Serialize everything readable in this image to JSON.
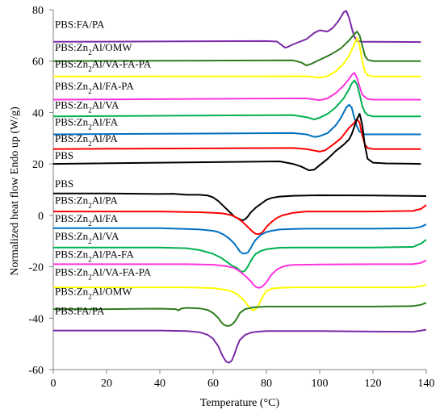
{
  "chart_data": {
    "type": "line",
    "xlabel": "Temperature (°C)",
    "ylabel": "Normalized heat flow Endo up (W/g)",
    "xlim": [
      0,
      140
    ],
    "ylim": [
      -60,
      80
    ],
    "xticks": [
      0,
      20,
      40,
      60,
      80,
      100,
      120,
      140
    ],
    "yticks": [
      80,
      60,
      40,
      20,
      0,
      -20,
      -40,
      -60
    ],
    "grid": false,
    "legend": "inline labels above each curve",
    "labels": [
      {
        "parts": [
          "PBS:FA/PA"
        ],
        "x": 0,
        "y": 73
      },
      {
        "parts": [
          "PBS:Zn",
          "2",
          "Al/OMW"
        ],
        "x": 0,
        "y": 64
      },
      {
        "parts": [
          "PBS:Zn",
          "2",
          "Al/VA-FA-PA"
        ],
        "x": 0,
        "y": 57.5
      },
      {
        "parts": [
          "PBS:Zn",
          "2",
          "Al/FA-PA"
        ],
        "x": 0,
        "y": 49
      },
      {
        "parts": [
          "PBS:Zn",
          "2",
          "Al/VA"
        ],
        "x": 0,
        "y": 41.5
      },
      {
        "parts": [
          "PBS:Zn",
          "2",
          "Al/FA"
        ],
        "x": 0,
        "y": 35
      },
      {
        "parts": [
          "PBS:Zn",
          "2",
          "Al/PA"
        ],
        "x": 0,
        "y": 28.5
      },
      {
        "parts": [
          "PBS"
        ],
        "x": 0,
        "y": 22
      },
      {
        "parts": [
          "PBS"
        ],
        "x": 0,
        "y": 11
      },
      {
        "parts": [
          "PBS:Zn",
          "2",
          "Al/PA"
        ],
        "x": 0,
        "y": 4.5
      },
      {
        "parts": [
          "PBS:Zn",
          "2",
          "Al/FA"
        ],
        "x": 0,
        "y": -2.5
      },
      {
        "parts": [
          "PBS:Zn",
          "2",
          "Al/VA"
        ],
        "x": 0,
        "y": -9.5
      },
      {
        "parts": [
          "PBS:Zn",
          "2",
          "Al/PA-FA"
        ],
        "x": 0,
        "y": -16.5
      },
      {
        "parts": [
          "PBS:Zn",
          "2",
          "Al/VA-FA-PA"
        ],
        "x": 0,
        "y": -23.5
      },
      {
        "parts": [
          "PBS:Zn",
          "2",
          "Al/OMW"
        ],
        "x": 0,
        "y": -31
      },
      {
        "parts": [
          "PBS:FA/PA"
        ],
        "x": 0,
        "y": -38.5
      }
    ],
    "series": [
      {
        "color": "#7b2aa8",
        "x": [
          0,
          80,
          84,
          86,
          87,
          88,
          90,
          95,
          98,
          100,
          103,
          105,
          107,
          109,
          110,
          111,
          112,
          113,
          114,
          116,
          118,
          120,
          138
        ],
        "y": [
          67.5,
          67.8,
          67.6,
          66,
          65.2,
          65.5,
          66.5,
          68.5,
          71,
          72,
          71.5,
          73,
          75.5,
          79,
          79.5,
          77,
          73,
          69.5,
          67.8,
          67.5,
          67.5,
          67.5,
          67.4
        ]
      },
      {
        "color": "#2e7d1e",
        "x": [
          0,
          90,
          93,
          95,
          97,
          100,
          104,
          108,
          111,
          113,
          114,
          115,
          116,
          117,
          118,
          120,
          125,
          138
        ],
        "y": [
          60,
          60.3,
          59.5,
          58.3,
          59,
          60.5,
          62.5,
          65,
          68,
          70.5,
          71.5,
          70,
          66,
          62,
          60.5,
          60,
          60,
          60
        ]
      },
      {
        "color": "#ffff00",
        "x": [
          0,
          95,
          100,
          103,
          106,
          109,
          111,
          113,
          114,
          115,
          116,
          117,
          118,
          120,
          125,
          138
        ],
        "y": [
          54,
          54.1,
          53.5,
          54.2,
          56,
          59,
          62,
          66.5,
          69,
          66,
          60,
          56,
          54.5,
          54,
          54,
          54
        ]
      },
      {
        "color": "#ff33dd",
        "x": [
          0,
          95,
          100,
          103,
          106,
          109,
          111,
          112,
          113,
          114,
          115,
          116,
          117,
          118,
          120,
          125,
          138
        ],
        "y": [
          45,
          45.5,
          44.8,
          45.5,
          47.5,
          50.5,
          53,
          54.5,
          55.5,
          53.5,
          50,
          47,
          46,
          45.3,
          45,
          45,
          45
        ]
      },
      {
        "color": "#00b050",
        "x": [
          0,
          90,
          95,
          98,
          100,
          103,
          106,
          109,
          111,
          112,
          113,
          114,
          115,
          116,
          117,
          118,
          120,
          125,
          138
        ],
        "y": [
          38.5,
          39,
          38.2,
          37.3,
          38,
          39.5,
          42,
          45.5,
          49,
          51.2,
          52.5,
          51,
          47,
          42.5,
          40,
          39,
          38.5,
          38.5,
          38.5
        ]
      },
      {
        "color": "#0070c0",
        "x": [
          0,
          90,
          95,
          98,
          100,
          103,
          106,
          108,
          109,
          110,
          111,
          112,
          113,
          114,
          115,
          116,
          117,
          120,
          125,
          138
        ],
        "y": [
          31.5,
          32,
          31.5,
          30.5,
          30.8,
          32,
          35,
          38,
          40,
          42,
          43,
          42,
          38,
          34.5,
          32.5,
          32,
          31.5,
          31.5,
          31.5,
          31.5
        ]
      },
      {
        "color": "#ff0000",
        "x": [
          0,
          90,
          95,
          100,
          102,
          105,
          108,
          111,
          113,
          114,
          115,
          116,
          117,
          118,
          120,
          125,
          138
        ],
        "y": [
          25.8,
          26.2,
          25.8,
          24.8,
          25.3,
          27.5,
          30,
          34,
          36,
          37.5,
          36,
          31,
          27.5,
          26.2,
          25.8,
          25.8,
          25.8
        ]
      },
      {
        "color": "#000000",
        "x": [
          0,
          85,
          90,
          93,
          95,
          96,
          98,
          100,
          103,
          106,
          109,
          111,
          112,
          113,
          114,
          115,
          116,
          117,
          118,
          120,
          125,
          138
        ],
        "y": [
          20,
          21,
          20,
          19,
          18,
          17.5,
          17.8,
          19.5,
          22,
          25,
          27.5,
          29.5,
          31.5,
          34.5,
          37.5,
          39.5,
          35,
          27,
          22,
          20.5,
          20.2,
          20
        ]
      },
      {
        "color": "#000000",
        "x": [
          0,
          20,
          40,
          45,
          50,
          55,
          58,
          60,
          62,
          64,
          66,
          68,
          70,
          71,
          72,
          73,
          74,
          76,
          78,
          80,
          82,
          85,
          90,
          100,
          120,
          140
        ],
        "y": [
          8.5,
          8.5,
          8.3,
          8.4,
          8,
          8,
          7.7,
          7,
          5.5,
          3.5,
          1.5,
          -0.5,
          -1.5,
          -2,
          -1.5,
          -0.5,
          1,
          3,
          4.5,
          6,
          6.8,
          7.3,
          7.6,
          7.8,
          7.7,
          7.5
        ]
      },
      {
        "color": "#ff0000",
        "x": [
          0,
          40,
          50,
          55,
          60,
          63,
          65,
          67,
          69,
          71,
          73,
          75,
          76,
          77,
          78,
          79,
          80,
          82,
          84,
          86,
          88,
          90,
          95,
          100,
          120,
          135,
          138,
          140
        ],
        "y": [
          1.5,
          1.5,
          1.3,
          1.2,
          1,
          0.8,
          0.5,
          0,
          -1,
          -2.5,
          -4.5,
          -6.5,
          -7.2,
          -7.3,
          -7,
          -6,
          -4.5,
          -2.5,
          -1,
          0,
          0.5,
          1,
          1.5,
          1.5,
          1.5,
          1.7,
          2.5,
          4
        ]
      },
      {
        "color": "#0070c0",
        "x": [
          0,
          40,
          50,
          55,
          60,
          62,
          64,
          66,
          68,
          69,
          70,
          71,
          72,
          73,
          74,
          75,
          76,
          78,
          80,
          82,
          85,
          90,
          95,
          100,
          120,
          135,
          138,
          140
        ],
        "y": [
          -5,
          -5,
          -5.3,
          -5.5,
          -6,
          -6.5,
          -7.5,
          -9,
          -11,
          -12.5,
          -14,
          -14.8,
          -14.9,
          -14.5,
          -13,
          -11,
          -9.5,
          -7.5,
          -6.5,
          -6,
          -5.5,
          -5.3,
          -5.2,
          -5.2,
          -5.2,
          -5,
          -4.5,
          -3.5
        ]
      },
      {
        "color": "#00b050",
        "x": [
          0,
          40,
          50,
          55,
          60,
          63,
          65,
          67,
          69,
          70,
          71,
          72,
          73,
          74,
          75,
          76,
          78,
          80,
          82,
          85,
          90,
          100,
          120,
          135,
          138,
          140
        ],
        "y": [
          -12.5,
          -12.5,
          -12.8,
          -13.5,
          -15,
          -16.5,
          -18,
          -19.5,
          -20.5,
          -21.5,
          -22,
          -21.5,
          -20,
          -18,
          -16.3,
          -15,
          -13.8,
          -13.2,
          -12.9,
          -12.6,
          -12.5,
          -12.5,
          -12.5,
          -12.3,
          -11,
          -9.5
        ]
      },
      {
        "color": "#ff33dd",
        "x": [
          0,
          50,
          60,
          65,
          68,
          70,
          72,
          74,
          75,
          76,
          77,
          78,
          79,
          80,
          81,
          82,
          84,
          86,
          88,
          90,
          95,
          100,
          120,
          135,
          138,
          140
        ],
        "y": [
          -19,
          -19,
          -19.2,
          -19.8,
          -20.5,
          -21.8,
          -23.5,
          -25.5,
          -26.8,
          -27.8,
          -28.2,
          -28,
          -27.2,
          -26,
          -24.5,
          -23,
          -21,
          -20,
          -19.5,
          -19.3,
          -19.2,
          -19.1,
          -19,
          -19,
          -18.5,
          -17.5
        ]
      },
      {
        "color": "#ffff00",
        "x": [
          0,
          50,
          60,
          65,
          68,
          70,
          72,
          73,
          74,
          75,
          76,
          77,
          78,
          79,
          80,
          82,
          85,
          90,
          100,
          120,
          135,
          138,
          140
        ],
        "y": [
          -28,
          -28,
          -28.3,
          -29,
          -30,
          -31.5,
          -33.5,
          -35,
          -36.2,
          -37,
          -36.5,
          -35,
          -33,
          -31,
          -29.5,
          -28.5,
          -28.2,
          -28,
          -28,
          -28,
          -28,
          -27.5,
          -27
        ]
      },
      {
        "color": "#2e7d1e",
        "x": [
          0,
          20,
          30,
          40,
          46,
          47,
          48,
          50,
          55,
          58,
          60,
          62,
          63,
          64,
          65,
          66,
          67,
          68,
          69,
          70,
          72,
          75,
          80,
          90,
          100,
          120,
          135,
          138,
          140
        ],
        "y": [
          -36.5,
          -36.5,
          -36.4,
          -36.3,
          -36.5,
          -37,
          -36.3,
          -36,
          -36.2,
          -36.8,
          -38,
          -40,
          -41.5,
          -42.5,
          -43,
          -43,
          -42.5,
          -41.5,
          -40,
          -38,
          -36.5,
          -35.8,
          -35.5,
          -35.5,
          -35.5,
          -35.5,
          -35.3,
          -34.8,
          -34
        ]
      },
      {
        "color": "#7b2aa8",
        "x": [
          0,
          40,
          50,
          55,
          58,
          60,
          62,
          63,
          64,
          65,
          66,
          67,
          68,
          69,
          70,
          72,
          74,
          76,
          80,
          85,
          90,
          100,
          120,
          135,
          140
        ],
        "y": [
          -44.8,
          -44.8,
          -45,
          -45.5,
          -46.5,
          -48,
          -51,
          -53.5,
          -55.5,
          -57,
          -57.3,
          -56.5,
          -54,
          -51,
          -48.5,
          -46.5,
          -45.7,
          -45.3,
          -45,
          -45,
          -45,
          -45,
          -45.2,
          -45.3,
          -44.5
        ]
      }
    ]
  }
}
